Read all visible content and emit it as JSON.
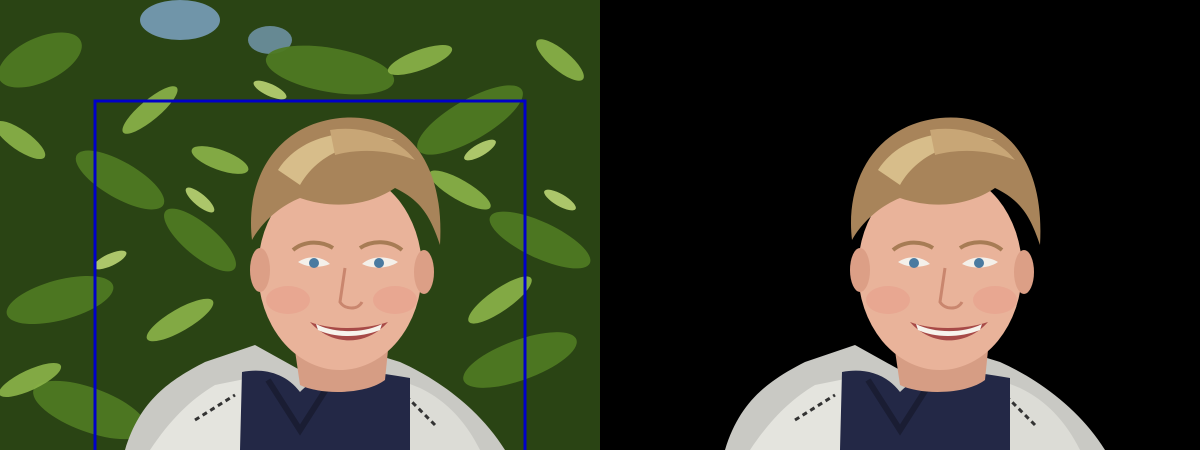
{
  "panels": [
    {
      "name": "original-photo",
      "background": "foliage",
      "has_bounding_box": true
    },
    {
      "name": "segmented-photo",
      "background": "black",
      "has_bounding_box": false
    }
  ],
  "colors": {
    "bounding_box": "#0000c8",
    "segmented_background": "#000000",
    "foliage_dark": "#1f3410",
    "foliage_mid": "#4f7a22",
    "foliage_light": "#9cc25a",
    "sky": "#8fb8e8",
    "hair": "#a8845a",
    "skin": "#e8b49a",
    "shirt": "#232846",
    "hood": "#c8c8c4"
  }
}
